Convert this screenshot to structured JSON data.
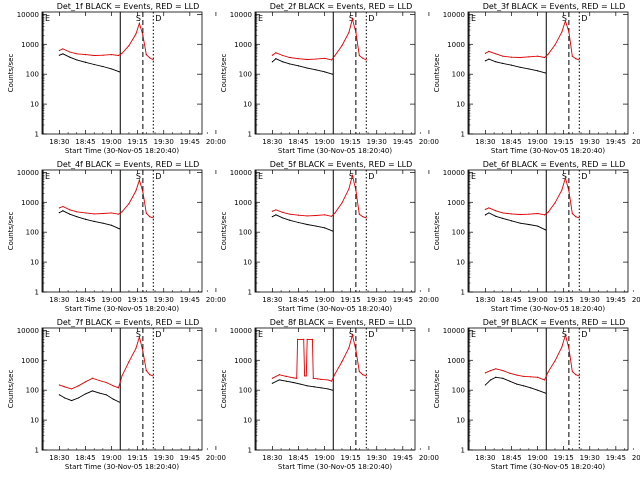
{
  "figure": {
    "x_label": "Start Time (30-Nov-05 18:20:40)",
    "y_label": "Counts/sec",
    "colors": {
      "events": "#000000",
      "lld": "#e00000",
      "markers": "#000000",
      "background": "#ffffff"
    }
  },
  "chart_data": [
    {
      "type": "line",
      "title": "Det_1f BLACK = Events, RED = LLD",
      "xticks": [
        "18:30",
        "18:45",
        "19:00",
        "19:15",
        "19:30",
        "19:45",
        "20:00"
      ],
      "yticks": [
        "1",
        "10",
        "100",
        "1000",
        "10000"
      ],
      "ylim": [
        1,
        12000
      ],
      "yscale": "log",
      "markers": [
        "E",
        "S",
        "D"
      ],
      "series": [
        {
          "color": "black",
          "x": [
            0,
            2,
            6,
            10,
            15,
            20,
            25,
            30,
            34.5
          ],
          "y": [
            430,
            480,
            370,
            300,
            250,
            210,
            180,
            150,
            120
          ]
        },
        {
          "color": "red",
          "x": [
            0,
            2,
            6,
            10,
            15,
            20,
            25,
            30,
            34,
            36,
            40,
            44,
            46,
            48,
            50,
            52,
            54
          ],
          "y": [
            620,
            700,
            550,
            480,
            450,
            420,
            430,
            450,
            420,
            500,
            900,
            2200,
            5000,
            2000,
            450,
            350,
            300
          ]
        }
      ]
    },
    {
      "type": "line",
      "title": "Det_2f BLACK = Events, RED = LLD",
      "xticks": [
        "18:30",
        "18:45",
        "19:00",
        "19:15",
        "19:30",
        "19:45",
        "20:00"
      ],
      "yticks": [
        "1",
        "10",
        "100",
        "1000",
        "10000"
      ],
      "ylim": [
        1,
        12000
      ],
      "yscale": "log",
      "markers": [
        "E",
        "S",
        "D"
      ],
      "series": [
        {
          "color": "black",
          "x": [
            0,
            2,
            6,
            10,
            15,
            20,
            25,
            30,
            34.5
          ],
          "y": [
            260,
            330,
            260,
            220,
            190,
            160,
            140,
            120,
            100
          ]
        },
        {
          "color": "red",
          "x": [
            0,
            2,
            6,
            10,
            15,
            20,
            25,
            30,
            34,
            36,
            40,
            44,
            46,
            48,
            50,
            52,
            54
          ],
          "y": [
            430,
            520,
            420,
            360,
            330,
            310,
            320,
            340,
            300,
            420,
            900,
            2500,
            7000,
            2500,
            420,
            340,
            300
          ]
        }
      ]
    },
    {
      "type": "line",
      "title": "Det_3f BLACK = Events, RED = LLD",
      "xticks": [
        "18:30",
        "18:45",
        "19:00",
        "19:15",
        "19:30",
        "19:45",
        "20:00"
      ],
      "yticks": [
        "1",
        "10",
        "100",
        "1000",
        "10000"
      ],
      "ylim": [
        1,
        12000
      ],
      "yscale": "log",
      "markers": [
        "E",
        "S",
        "D"
      ],
      "series": [
        {
          "color": "black",
          "x": [
            0,
            2,
            6,
            10,
            15,
            20,
            25,
            30,
            34.5
          ],
          "y": [
            280,
            320,
            260,
            230,
            200,
            170,
            150,
            130,
            110
          ]
        },
        {
          "color": "red",
          "x": [
            0,
            2,
            6,
            10,
            15,
            20,
            25,
            30,
            34,
            36,
            40,
            44,
            46,
            48,
            50,
            52,
            54
          ],
          "y": [
            500,
            580,
            480,
            400,
            370,
            360,
            380,
            400,
            360,
            460,
            950,
            2600,
            6000,
            2600,
            400,
            330,
            300
          ]
        }
      ]
    },
    {
      "type": "line",
      "title": "Det_4f BLACK = Events, RED = LLD",
      "xticks": [
        "18:30",
        "18:45",
        "19:00",
        "19:15",
        "19:30",
        "19:45",
        "20:00"
      ],
      "yticks": [
        "1",
        "10",
        "100",
        "1000",
        "10000"
      ],
      "ylim": [
        1,
        12000
      ],
      "yscale": "log",
      "markers": [
        "E",
        "S",
        "D"
      ],
      "series": [
        {
          "color": "black",
          "x": [
            0,
            2,
            6,
            10,
            15,
            20,
            25,
            30,
            34.5
          ],
          "y": [
            450,
            520,
            400,
            330,
            270,
            230,
            200,
            170,
            130
          ]
        },
        {
          "color": "red",
          "x": [
            0,
            2,
            6,
            10,
            15,
            20,
            25,
            30,
            34,
            36,
            40,
            44,
            46,
            48,
            50,
            52,
            54
          ],
          "y": [
            650,
            720,
            560,
            480,
            440,
            410,
            420,
            440,
            400,
            480,
            900,
            2400,
            5500,
            2200,
            430,
            330,
            300
          ]
        }
      ]
    },
    {
      "type": "line",
      "title": "Det_5f BLACK = Events, RED = LLD",
      "xticks": [
        "18:30",
        "18:45",
        "19:00",
        "19:15",
        "19:30",
        "19:45",
        "20:00"
      ],
      "yticks": [
        "1",
        "10",
        "100",
        "1000",
        "10000"
      ],
      "ylim": [
        1,
        12000
      ],
      "yscale": "log",
      "markers": [
        "E",
        "S",
        "D"
      ],
      "series": [
        {
          "color": "black",
          "x": [
            0,
            2,
            6,
            10,
            15,
            20,
            25,
            30,
            34.5
          ],
          "y": [
            330,
            380,
            300,
            250,
            210,
            180,
            160,
            140,
            110
          ]
        },
        {
          "color": "red",
          "x": [
            0,
            2,
            6,
            10,
            15,
            20,
            25,
            30,
            34,
            36,
            40,
            44,
            46,
            48,
            50,
            52,
            54
          ],
          "y": [
            500,
            560,
            460,
            400,
            370,
            350,
            360,
            380,
            340,
            440,
            950,
            2800,
            8000,
            2500,
            400,
            330,
            300
          ]
        }
      ]
    },
    {
      "type": "line",
      "title": "Det_6f BLACK = Events, RED = LLD",
      "xticks": [
        "18:30",
        "18:45",
        "19:00",
        "19:15",
        "19:30",
        "19:45",
        "20:00"
      ],
      "yticks": [
        "1",
        "10",
        "100",
        "1000",
        "10000"
      ],
      "ylim": [
        1,
        12000
      ],
      "yscale": "log",
      "markers": [
        "E",
        "S",
        "D"
      ],
      "series": [
        {
          "color": "black",
          "x": [
            0,
            2,
            6,
            10,
            15,
            20,
            25,
            30,
            34.5
          ],
          "y": [
            380,
            440,
            340,
            290,
            240,
            200,
            180,
            160,
            120
          ]
        },
        {
          "color": "red",
          "x": [
            0,
            2,
            6,
            10,
            15,
            20,
            25,
            30,
            34,
            36,
            40,
            44,
            46,
            48,
            50,
            52,
            54
          ],
          "y": [
            580,
            650,
            520,
            440,
            410,
            390,
            400,
            420,
            380,
            460,
            950,
            2600,
            6500,
            2400,
            420,
            330,
            300
          ]
        }
      ]
    },
    {
      "type": "line",
      "title": "Det_7f BLACK = Events, RED = LLD",
      "xticks": [
        "18:30",
        "18:45",
        "19:00",
        "19:15",
        "19:30",
        "19:45",
        "20:00"
      ],
      "yticks": [
        "1",
        "10",
        "100",
        "1000",
        "10000"
      ],
      "ylim": [
        1,
        12000
      ],
      "yscale": "log",
      "markers": [
        "E",
        "S",
        "D"
      ],
      "series": [
        {
          "color": "black",
          "x": [
            0,
            3,
            7,
            11,
            15,
            19,
            23,
            27,
            31,
            34.5
          ],
          "y": [
            70,
            55,
            45,
            55,
            75,
            95,
            80,
            70,
            50,
            40
          ]
        },
        {
          "color": "red",
          "x": [
            0,
            3,
            7,
            11,
            15,
            19,
            23,
            27,
            31,
            34,
            36,
            40,
            44,
            46,
            48,
            50,
            52,
            54
          ],
          "y": [
            150,
            130,
            110,
            140,
            190,
            250,
            210,
            180,
            140,
            120,
            300,
            900,
            2500,
            6000,
            2000,
            450,
            330,
            300
          ]
        }
      ]
    },
    {
      "type": "line",
      "title": "Det_8f BLACK = Events, RED = LLD",
      "xticks": [
        "18:30",
        "18:45",
        "19:00",
        "19:15",
        "19:30",
        "19:45",
        "20:00"
      ],
      "yticks": [
        "1",
        "10",
        "100",
        "1000",
        "10000"
      ],
      "ylim": [
        1,
        12000
      ],
      "yscale": "log",
      "markers": [
        "E",
        "S",
        "D"
      ],
      "series": [
        {
          "color": "black",
          "x": [
            0,
            4,
            8,
            12,
            16,
            20,
            24,
            28,
            32,
            34.5
          ],
          "y": [
            170,
            220,
            200,
            180,
            160,
            140,
            130,
            120,
            110,
            100
          ]
        },
        {
          "color": "red",
          "x": [
            0,
            4,
            8,
            12,
            14,
            14.5,
            18,
            18.5,
            19.5,
            20,
            23,
            23.5,
            26,
            28,
            32,
            34,
            36,
            40,
            44,
            46,
            48,
            50,
            52,
            54
          ],
          "y": [
            250,
            330,
            290,
            260,
            250,
            5000,
            5000,
            300,
            300,
            5000,
            5000,
            250,
            240,
            230,
            220,
            200,
            350,
            900,
            2600,
            7000,
            2200,
            420,
            330,
            300
          ]
        }
      ]
    },
    {
      "type": "line",
      "title": "Det_9f BLACK = Events, RED = LLD",
      "xticks": [
        "18:30",
        "18:45",
        "19:00",
        "19:15",
        "19:30",
        "19:45",
        "20:00"
      ],
      "yticks": [
        "1",
        "10",
        "100",
        "1000",
        "10000"
      ],
      "ylim": [
        1,
        12000
      ],
      "yscale": "log",
      "markers": [
        "E",
        "S",
        "D"
      ],
      "series": [
        {
          "color": "black",
          "x": [
            0,
            3,
            6,
            10,
            14,
            18,
            22,
            26,
            30,
            34.5
          ],
          "y": [
            150,
            220,
            270,
            250,
            200,
            160,
            140,
            120,
            100,
            80
          ]
        },
        {
          "color": "red",
          "x": [
            0,
            3,
            6,
            10,
            14,
            18,
            22,
            26,
            30,
            34,
            36,
            40,
            44,
            46,
            48,
            50,
            52,
            54
          ],
          "y": [
            380,
            450,
            520,
            450,
            370,
            320,
            290,
            280,
            270,
            220,
            400,
            950,
            2800,
            7000,
            2500,
            420,
            330,
            300
          ]
        }
      ]
    }
  ]
}
